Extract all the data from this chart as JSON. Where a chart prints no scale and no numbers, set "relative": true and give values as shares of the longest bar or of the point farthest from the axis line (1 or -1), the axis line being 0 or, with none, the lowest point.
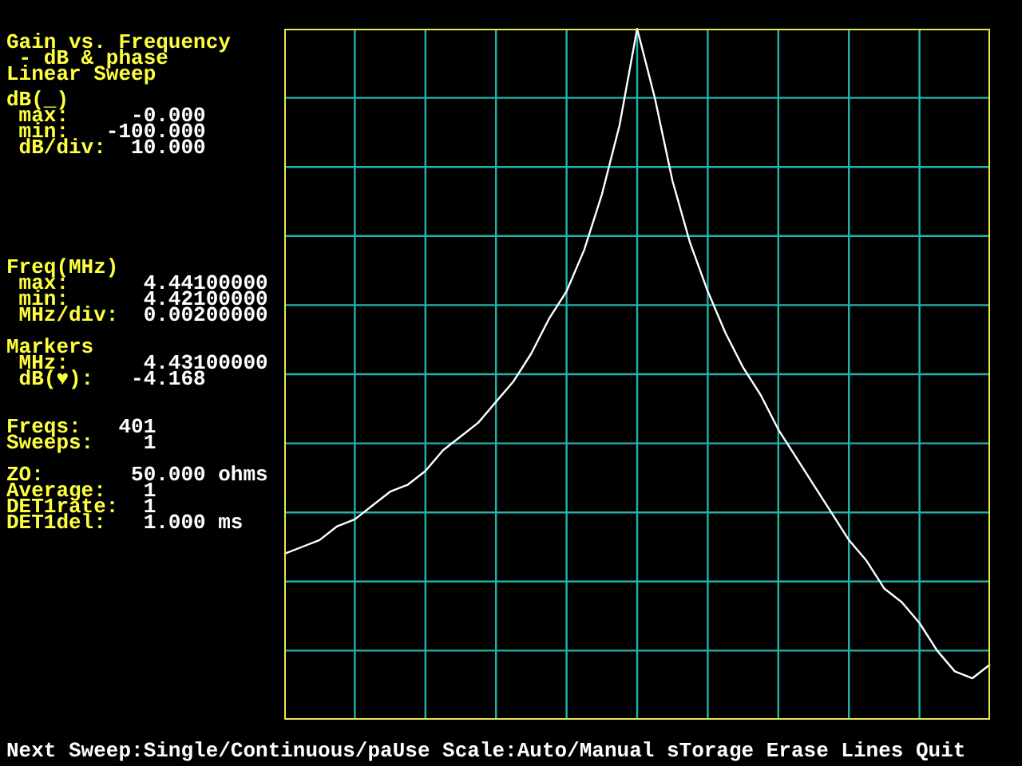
{
  "chart_data": {
    "type": "line",
    "title": "Gain vs. Frequency",
    "subtitle": " - dB & phase",
    "annotations": [
      "Linear Sweep",
      "dB(_)\n max:     -0.000\n min:   -100.000\n dB/div:  10.000",
      "Freq(MHz)\n max:      4.44100000\n min:      4.42100000\n MHz/div:  0.00200000",
      "Markers\n MHz:      4.43100000\n dB(♥):   -4.168",
      "Freqs:   401\nSweeps:    1",
      "ZO:       50.000 ohms\nAverage:   1\nDET1rate:  1\nDET1del:   1.000 ms",
      "Next Sweep:Single/Continuous/paUse Scale:Auto/Manual sTorage Erase Lines Quit"
    ],
    "categories": [
      null,
      null,
      null,
      null,
      null,
      null,
      null,
      null,
      null,
      null,
      null,
      null,
      null,
      null,
      null,
      null,
      null,
      null,
      null,
      null,
      null,
      null,
      null,
      null,
      null,
      null,
      null,
      null,
      null,
      null,
      null,
      null,
      null,
      null,
      null,
      null,
      null,
      null,
      null,
      null,
      null
    ],
    "relative": true,
    "series": [
      {
        "color": "#ffffff",
        "values": [
          0.24,
          0.25,
          0.26,
          0.28,
          0.29,
          0.31,
          0.33,
          0.34,
          0.36,
          0.39,
          0.41,
          0.43,
          0.46,
          0.49,
          0.53,
          0.58,
          0.62,
          0.68,
          0.76,
          0.86,
          1,
          0.9,
          0.78,
          0.69,
          0.62,
          0.56,
          0.51,
          0.47,
          0.42,
          0.38,
          0.34,
          0.3,
          0.26,
          0.23,
          0.19,
          0.17,
          0.14,
          0.1,
          0.07,
          0.06,
          0.08
        ]
      }
    ],
    "grid": true,
    "tick_labels": false,
    "legend": false,
    "marker": "none",
    "line_style": "solid"
  }
}
